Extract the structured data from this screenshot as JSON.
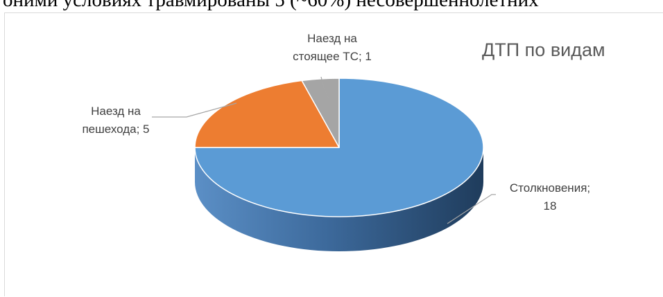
{
  "document": {
    "partial_line": "оними условиях травмированы 5 (~60%) несовершеннолетних"
  },
  "chart_data": {
    "type": "pie",
    "title": "ДТП по видам",
    "three_d": true,
    "categories": [
      "Столкновения",
      "Наезд на пешехода",
      "Наезд на стоящее ТС"
    ],
    "values": [
      18,
      5,
      1
    ],
    "colors": [
      "#5b9bd5",
      "#ed7d31",
      "#a5a5a5"
    ],
    "labels": [
      {
        "lines": [
          "Столкновения;",
          "18"
        ]
      },
      {
        "lines": [
          "Наезд на",
          "пешехода; 5"
        ]
      },
      {
        "lines": [
          "Наезд на",
          "стоящее ТС; 1"
        ]
      }
    ]
  }
}
